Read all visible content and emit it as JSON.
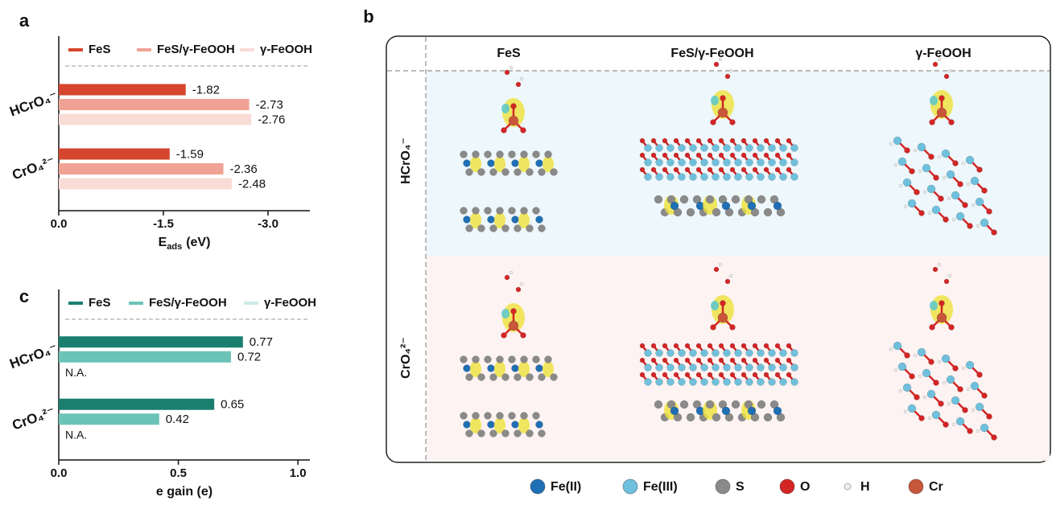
{
  "chart_data": [
    {
      "type": "hbar",
      "panel_label": "a",
      "categories": [
        "HCrO₄⁻",
        "CrO₄²⁻"
      ],
      "series": [
        {
          "name": "FeS",
          "color": "#d6452d",
          "values": [
            -1.82,
            -1.59
          ]
        },
        {
          "name": "FeS/γ-FeOOH",
          "color": "#f0a394",
          "values": [
            -2.73,
            -2.36
          ]
        },
        {
          "name": "γ-FeOOH",
          "color": "#f9dcd6",
          "values": [
            -2.76,
            -2.48
          ]
        }
      ],
      "x_label": {
        "symbol": "E",
        "subscript": "ads",
        "unit": "(eV)"
      },
      "xlim": [
        0,
        -3.6
      ],
      "xticks": [
        {
          "value": 0,
          "label": "0.0"
        },
        -1.5,
        {
          "value": -3,
          "label": "-3.0"
        }
      ],
      "legend": "top"
    },
    {
      "type": "hbar",
      "panel_label": "c",
      "categories": [
        "HCrO₄⁻",
        "CrO₄²⁻"
      ],
      "series": [
        {
          "name": "FeS",
          "color": "#1a7f6e",
          "values": [
            0.77,
            0.65
          ]
        },
        {
          "name": "FeS/γ-FeOOH",
          "color": "#6cc3b7",
          "values": [
            0.72,
            0.42
          ]
        },
        {
          "name": "γ-FeOOH",
          "color": "#cdebe7",
          "values": [
            null,
            null
          ],
          "value_labels": [
            "N.A.",
            "N.A."
          ]
        }
      ],
      "x_label": "e gain (e)",
      "xlim": [
        0,
        1.05
      ],
      "xticks": [
        {
          "value": 0,
          "label": "0.0"
        },
        0.5,
        {
          "value": 1,
          "label": "1.0"
        }
      ],
      "legend": "top"
    }
  ],
  "structure_panel": {
    "panel_label": "b",
    "columns": [
      "FeS",
      "FeS/γ-FeOOH",
      "γ-FeOOH"
    ],
    "rows": [
      "HCrO₄⁻",
      "CrO₄²⁻"
    ],
    "legend": [
      {
        "name": "Fe(II)",
        "color": "#1f6fb5"
      },
      {
        "name": "Fe(III)",
        "color": "#6fc0dc"
      },
      {
        "name": "S",
        "color": "#8a8a8a"
      },
      {
        "name": "O",
        "color": "#d42525"
      },
      {
        "name": "H",
        "color": "#eeeeee"
      },
      {
        "name": "Cr",
        "color": "#c8563a"
      }
    ]
  }
}
